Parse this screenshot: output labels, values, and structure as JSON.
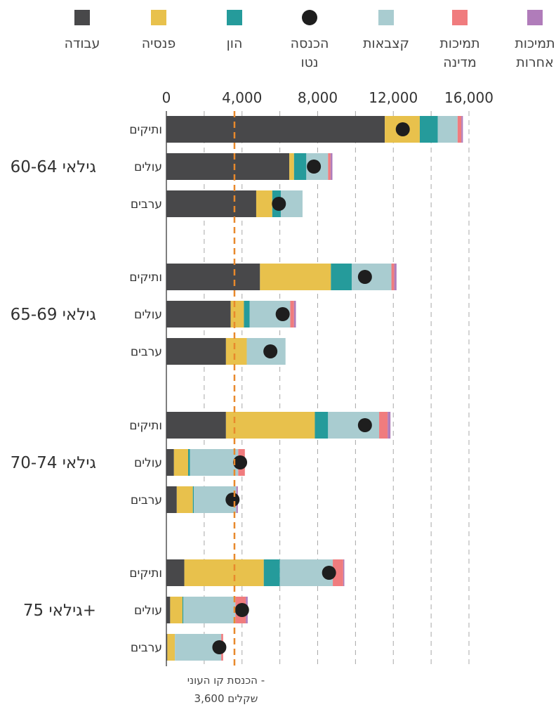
{
  "chart_data": {
    "type": "bar",
    "orientation": "horizontal",
    "stacked": true,
    "xlim": [
      0,
      16000
    ],
    "x_ticks": [
      "0",
      "4,000",
      "8,000",
      "12,000",
      "16,000"
    ],
    "grid": "vertical dashed",
    "legend_position": "top",
    "legend": [
      {
        "key": "work",
        "label_lines": [
          "עבודה"
        ],
        "color": "#48484a",
        "marker": "square"
      },
      {
        "key": "pension",
        "label_lines": [
          "פנסיה"
        ],
        "color": "#e8c14c",
        "marker": "square"
      },
      {
        "key": "capital",
        "label_lines": [
          "הון"
        ],
        "color": "#259b9b",
        "marker": "square"
      },
      {
        "key": "net",
        "label_lines": [
          "הכנסה",
          "נטו"
        ],
        "color": "#1e1e1e",
        "marker": "circle"
      },
      {
        "key": "allowances",
        "label_lines": [
          "קצבאות"
        ],
        "color": "#a9ccd0",
        "marker": "square"
      },
      {
        "key": "state",
        "label_lines": [
          "תמיכות",
          "מדינה"
        ],
        "color": "#f07c7e",
        "marker": "square"
      },
      {
        "key": "other",
        "label_lines": [
          "תמיכות",
          "אחרות"
        ],
        "color": "#b07cba",
        "marker": "square"
      }
    ],
    "segment_order": [
      "work",
      "pension",
      "capital",
      "allowances",
      "state",
      "other"
    ],
    "groups": [
      {
        "label": "גילאי 60-64",
        "rows": [
          {
            "label": "ותיקים",
            "work": 11550,
            "pension": 1850,
            "capital": 950,
            "allowances": 1050,
            "state": 200,
            "other": 80,
            "net": 12500
          },
          {
            "label": "עולים",
            "work": 6500,
            "pension": 250,
            "capital": 650,
            "allowances": 1150,
            "state": 130,
            "other": 100,
            "net": 7800
          },
          {
            "label": "ערבים",
            "work": 4750,
            "pension": 850,
            "capital": 450,
            "allowances": 1150,
            "state": 0,
            "other": 0,
            "net": 5950
          }
        ]
      },
      {
        "label": "גילאי 65-69",
        "rows": [
          {
            "label": "ותיקים",
            "work": 4950,
            "pension": 3750,
            "capital": 1100,
            "allowances": 2100,
            "state": 150,
            "other": 120,
            "net": 10500
          },
          {
            "label": "עולים",
            "work": 3400,
            "pension": 700,
            "capital": 300,
            "allowances": 2150,
            "state": 200,
            "other": 100,
            "net": 6150
          },
          {
            "label": "ערבים",
            "work": 3150,
            "pension": 1100,
            "capital": 0,
            "allowances": 2050,
            "state": 0,
            "other": 0,
            "net": 5500
          }
        ]
      },
      {
        "label": "גילאי 70-74",
        "rows": [
          {
            "label": "ותיקים",
            "work": 3150,
            "pension": 4700,
            "capital": 700,
            "allowances": 2700,
            "state": 450,
            "other": 150,
            "net": 10500
          },
          {
            "label": "עולים",
            "work": 400,
            "pension": 750,
            "capital": 100,
            "allowances": 2550,
            "state": 350,
            "other": 0,
            "net": 3900
          },
          {
            "label": "ערבים",
            "work": 550,
            "pension": 850,
            "capital": 50,
            "allowances": 2250,
            "state": 0,
            "other": 80,
            "net": 3500
          }
        ]
      },
      {
        "label": "גילאי 75+",
        "rows": [
          {
            "label": "ותיקים",
            "work": 950,
            "pension": 4200,
            "capital": 850,
            "allowances": 2800,
            "state": 550,
            "other": 60,
            "net": 8600
          },
          {
            "label": "עולים",
            "work": 200,
            "pension": 650,
            "capital": 50,
            "allowances": 2750,
            "state": 550,
            "other": 100,
            "net": 4000
          },
          {
            "label": "ערבים",
            "work": 50,
            "pension": 400,
            "capital": 0,
            "allowances": 2450,
            "state": 100,
            "other": 0,
            "net": 2800
          }
        ]
      }
    ],
    "reference_line": {
      "value": 3600,
      "color": "#e8892c",
      "label_lines": [
        "הכנסת קו העוני -",
        "3,600 שקלים"
      ]
    }
  }
}
